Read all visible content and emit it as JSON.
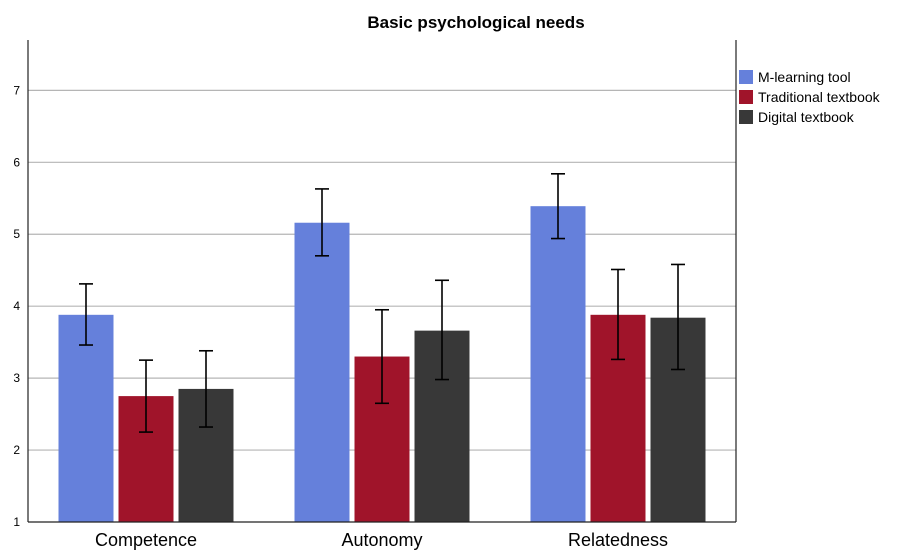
{
  "chart_data": {
    "type": "bar",
    "title": "Basic psychological needs",
    "xlabel": "",
    "ylabel": "",
    "categories": [
      "Competence",
      "Autonomy",
      "Relatedness"
    ],
    "ylim": [
      1,
      7.7
    ],
    "yticks": [
      1,
      2,
      3,
      4,
      5,
      6,
      7
    ],
    "grid": true,
    "legend_position": "top-right",
    "series": [
      {
        "name": "M-learning tool",
        "color": "#6580DB",
        "values": [
          3.88,
          5.16,
          5.39
        ],
        "err_low": [
          3.46,
          4.7,
          4.94
        ],
        "err_high": [
          4.31,
          5.63,
          5.84
        ]
      },
      {
        "name": "Traditional textbook",
        "color": "#A0142A",
        "values": [
          2.75,
          3.3,
          3.88
        ],
        "err_low": [
          2.25,
          2.65,
          3.26
        ],
        "err_high": [
          3.25,
          3.95,
          4.51
        ]
      },
      {
        "name": "Digital textbook",
        "color": "#383838",
        "values": [
          2.85,
          3.66,
          3.84
        ],
        "err_low": [
          2.32,
          2.98,
          3.12
        ],
        "err_high": [
          3.38,
          4.36,
          4.58
        ]
      }
    ]
  }
}
